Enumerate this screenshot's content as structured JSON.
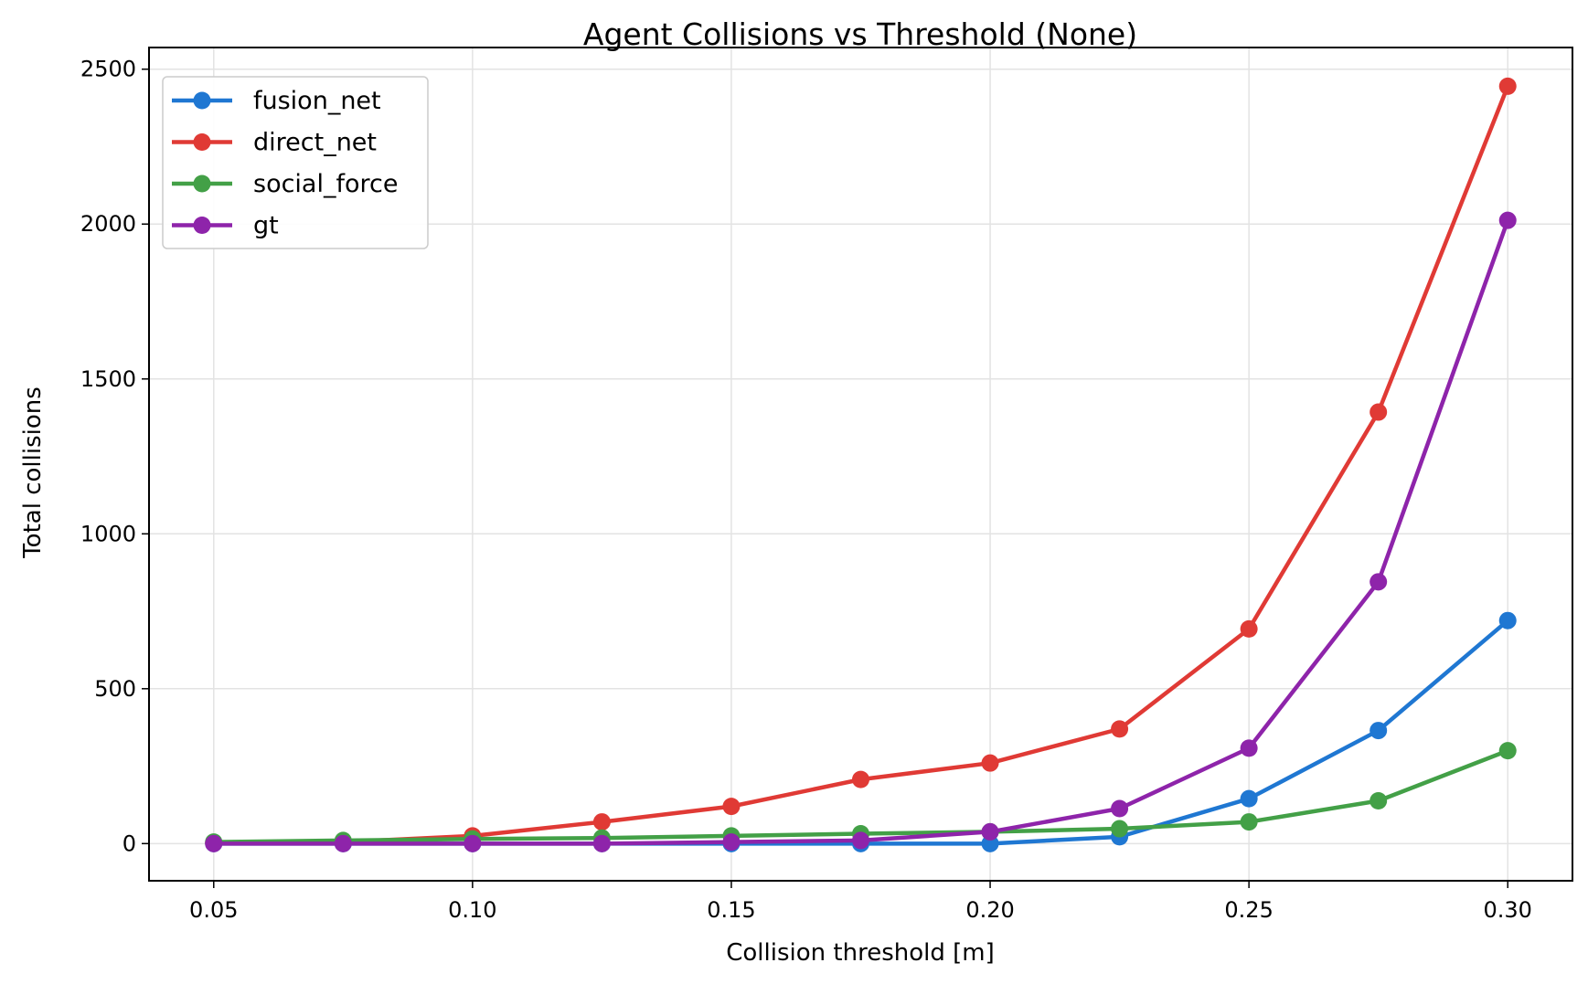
{
  "chart_data": {
    "type": "line",
    "title": "Agent Collisions vs Threshold (None)",
    "xlabel": "Collision threshold [m]",
    "ylabel": "Total collisions",
    "xlim": [
      0.0375,
      0.3125
    ],
    "ylim": [
      -120,
      2570
    ],
    "x": [
      0.05,
      0.075,
      0.1,
      0.125,
      0.15,
      0.175,
      0.2,
      0.225,
      0.25,
      0.275,
      0.3
    ],
    "xticks": [
      "0.05",
      "0.10",
      "0.15",
      "0.20",
      "0.25",
      "0.30"
    ],
    "xtick_values": [
      0.05,
      0.1,
      0.15,
      0.2,
      0.25,
      0.3
    ],
    "yticks": [
      "0",
      "500",
      "1000",
      "1500",
      "2000",
      "2500"
    ],
    "ytick_values": [
      0,
      500,
      1000,
      1500,
      2000,
      2500
    ],
    "grid": true,
    "legend_position": "upper-left",
    "series": [
      {
        "name": "fusion_net",
        "color": "#1f77d2",
        "values": [
          0,
          0,
          0,
          0,
          0,
          0,
          0,
          22,
          145,
          365,
          720
        ]
      },
      {
        "name": "direct_net",
        "color": "#e03a35",
        "values": [
          2,
          5,
          25,
          70,
          120,
          207,
          260,
          370,
          693,
          1393,
          2445
        ]
      },
      {
        "name": "social_force",
        "color": "#43a047",
        "values": [
          5,
          10,
          15,
          18,
          25,
          32,
          38,
          48,
          70,
          138,
          300
        ]
      },
      {
        "name": "gt",
        "color": "#8e24aa",
        "values": [
          0,
          0,
          0,
          0,
          5,
          10,
          38,
          113,
          308,
          845,
          2012
        ]
      }
    ]
  }
}
